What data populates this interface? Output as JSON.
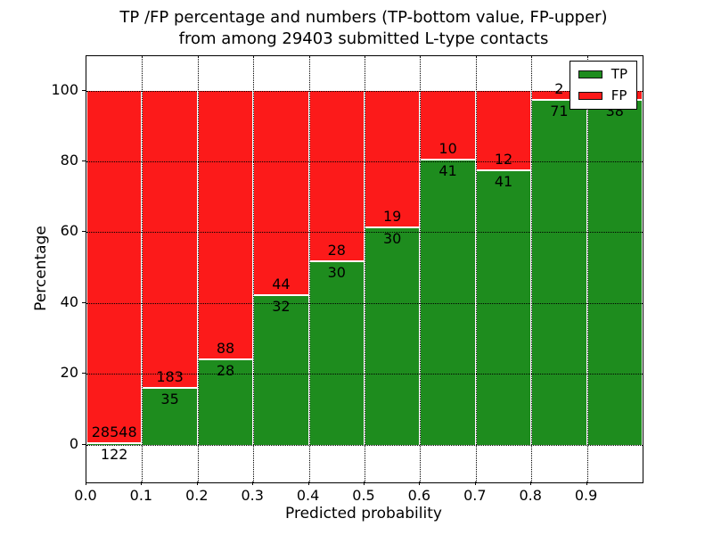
{
  "figure": {
    "title_line1": "TP /FP percentage and numbers (TP-bottom value, FP-upper)",
    "title_line2": "from among 29403 submitted L-type contacts",
    "xlabel": "Predicted probability",
    "ylabel": "Percentage"
  },
  "chart_data": {
    "type": "bar",
    "stacked": true,
    "title": "TP /FP percentage and numbers (TP-bottom value, FP-upper) from among 29403 submitted L-type contacts",
    "total_submitted_contacts": 29403,
    "xlabel": "Predicted probability",
    "ylabel": "Percentage",
    "xlim": [
      0.0,
      1.0
    ],
    "ylim": [
      -10.7,
      109.7
    ],
    "grid": true,
    "legend_position": "upper right",
    "x_tick_labels": [
      "0.0",
      "0.1",
      "0.2",
      "0.3",
      "0.4",
      "0.5",
      "0.6",
      "0.7",
      "0.8",
      "0.9"
    ],
    "y_tick_values": [
      0,
      20,
      40,
      60,
      80,
      100
    ],
    "series": [
      {
        "name": "TP",
        "color": "#1e8c1e"
      },
      {
        "name": "FP",
        "color": "#fc1a1a"
      }
    ],
    "bins": [
      {
        "range": [
          0.0,
          0.1
        ],
        "tp": 122,
        "fp": 28548,
        "tp_pct": 0.43,
        "tp_label": "122",
        "fp_label": "28548"
      },
      {
        "range": [
          0.1,
          0.2
        ],
        "tp": 35,
        "fp": 183,
        "tp_pct": 16.06,
        "tp_label": "35",
        "fp_label": "183"
      },
      {
        "range": [
          0.2,
          0.3
        ],
        "tp": 28,
        "fp": 88,
        "tp_pct": 24.14,
        "tp_label": "28",
        "fp_label": "88"
      },
      {
        "range": [
          0.3,
          0.4
        ],
        "tp": 32,
        "fp": 44,
        "tp_pct": 42.11,
        "tp_label": "32",
        "fp_label": "44"
      },
      {
        "range": [
          0.4,
          0.5
        ],
        "tp": 30,
        "fp": 28,
        "tp_pct": 51.72,
        "tp_label": "30",
        "fp_label": "28"
      },
      {
        "range": [
          0.5,
          0.6
        ],
        "tp": 30,
        "fp": 19,
        "tp_pct": 61.22,
        "tp_label": "30",
        "fp_label": "19"
      },
      {
        "range": [
          0.6,
          0.7
        ],
        "tp": 41,
        "fp": 10,
        "tp_pct": 80.39,
        "tp_label": "41",
        "fp_label": "10"
      },
      {
        "range": [
          0.7,
          0.8
        ],
        "tp": 41,
        "fp": 12,
        "tp_pct": 77.36,
        "tp_label": "41",
        "fp_label": "12"
      },
      {
        "range": [
          0.8,
          0.9
        ],
        "tp": 71,
        "fp": 2,
        "tp_pct": 97.26,
        "tp_label": "71",
        "fp_label": "2"
      },
      {
        "range": [
          0.9,
          1.0
        ],
        "tp": 38,
        "fp": 1,
        "tp_pct": 97.44,
        "tp_label": "38",
        "fp_label": ""
      }
    ]
  }
}
